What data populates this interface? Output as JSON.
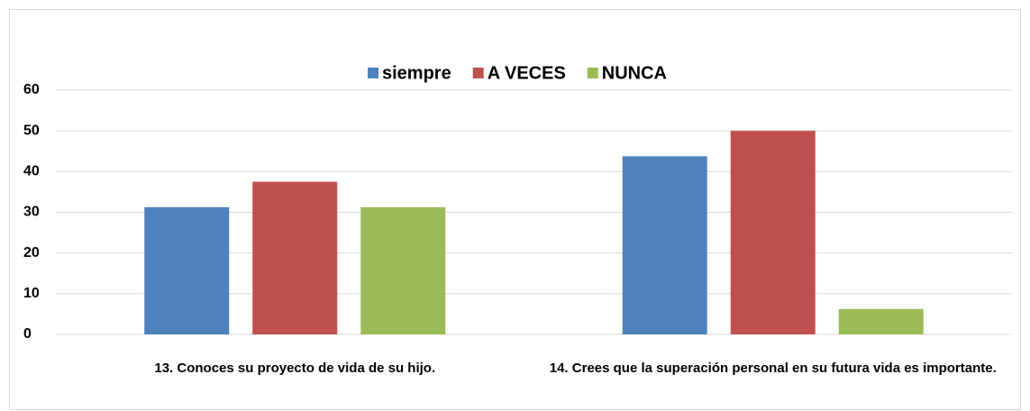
{
  "chart_data": {
    "type": "bar",
    "categories": [
      "13. Conoces su proyecto de vida de su hijo.",
      "14. Crees que la superación personal en su futura vida es importante."
    ],
    "series": [
      {
        "name": "siempre",
        "color": "#4f81bd",
        "values": [
          31.25,
          43.75
        ]
      },
      {
        "name": "A VECES",
        "color": "#c0504d",
        "values": [
          37.5,
          50
        ]
      },
      {
        "name": "NUNCA",
        "color": "#9bbb59",
        "values": [
          31.25,
          6.25
        ]
      }
    ],
    "ylim": [
      0,
      60
    ],
    "yticks": [
      0,
      10,
      20,
      30,
      40,
      50,
      60
    ],
    "grid": true,
    "legend": "top"
  }
}
